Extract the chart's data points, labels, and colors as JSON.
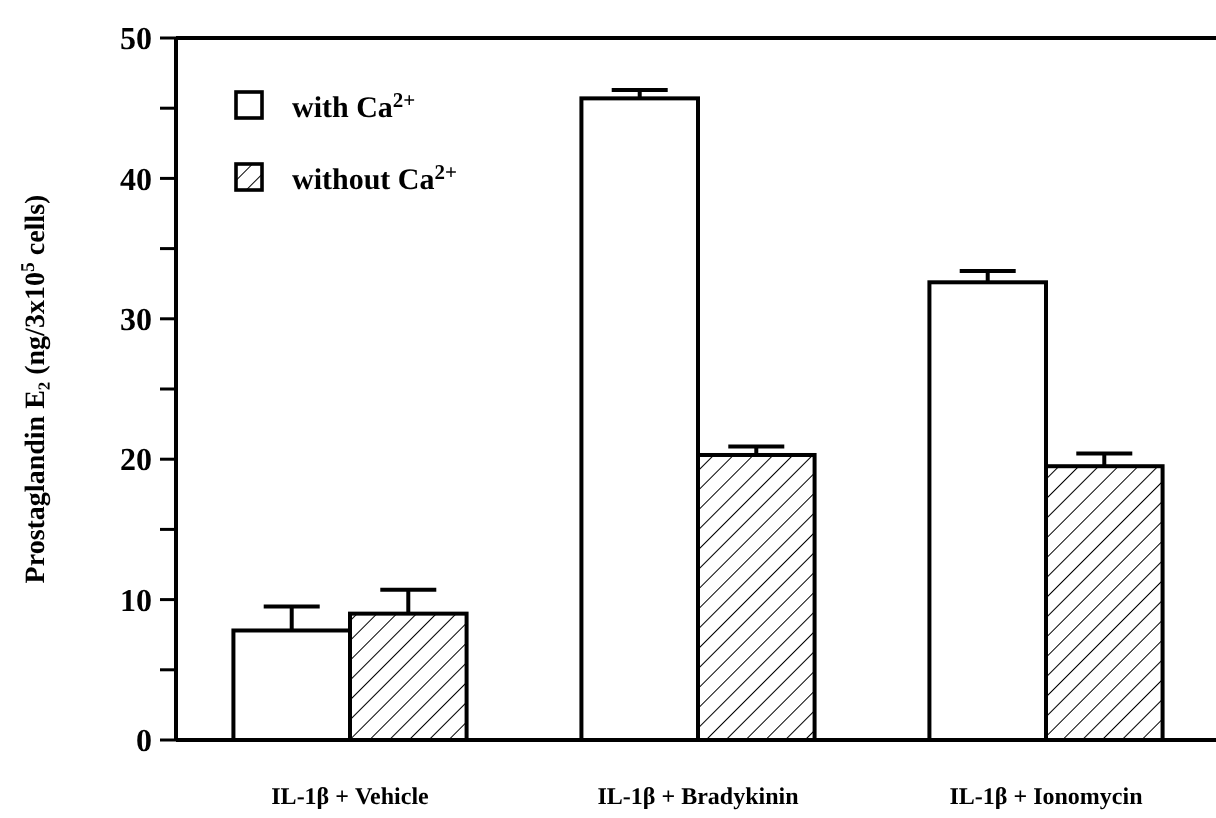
{
  "chart_data": {
    "type": "bar",
    "ylabel": "Prostaglandin E₂ (ng/3x10$^{5}$ cells)",
    "categories": [
      "IL-1β + Vehicle",
      "IL-1β + Bradykinin",
      "IL-1β + Ionomycin"
    ],
    "series": [
      {
        "name": "with Ca$^{2+}$",
        "color": "#ffffff",
        "values": [
          7.8,
          45.7,
          32.6
        ],
        "errors": [
          1.7,
          0.6,
          0.8
        ]
      },
      {
        "name": "without Ca$^{2+}$",
        "color": "#000000",
        "values": [
          9.0,
          20.3,
          19.5
        ],
        "errors": [
          1.7,
          0.6,
          0.9
        ]
      }
    ],
    "ylim": [
      0,
      50
    ],
    "yticks": [
      0,
      {
        "value": 5,
        "label": null
      },
      10,
      {
        "value": 15,
        "label": null
      },
      20,
      {
        "value": 25,
        "label": null
      },
      30,
      {
        "value": 35,
        "label": null
      },
      40,
      {
        "value": 45,
        "label": null
      },
      50
    ],
    "grid": false,
    "legend": "top left"
  }
}
